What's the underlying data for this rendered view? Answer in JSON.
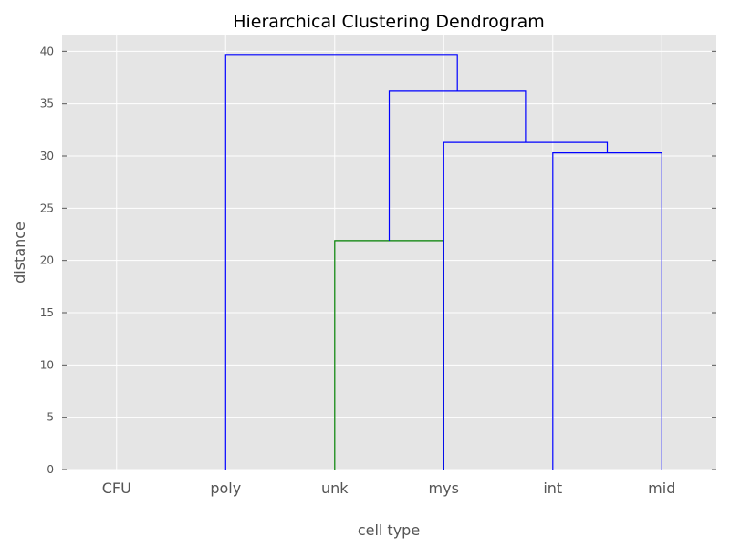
{
  "chart_data": {
    "type": "dendrogram",
    "title": "Hierarchical Clustering Dendrogram",
    "xlabel": "cell type",
    "ylabel": "distance",
    "ylim": [
      0,
      41.6
    ],
    "yticks": [
      0,
      5,
      10,
      15,
      20,
      25,
      30,
      35,
      40
    ],
    "leaves": [
      "CFU",
      "poly",
      "unk",
      "mys",
      "int",
      "mid"
    ],
    "grid": true,
    "colors": {
      "background": "#e5e5e5",
      "grid": "#ffffff",
      "above_threshold": "#0000ff",
      "cluster": "#008000"
    },
    "links": [
      {
        "icoord": [
          25,
          25,
          35,
          35
        ],
        "dcoord": [
          0,
          21.9,
          21.9,
          0
        ],
        "color": "#008000"
      },
      {
        "icoord": [
          45,
          45,
          55,
          55
        ],
        "dcoord": [
          0,
          30.3,
          30.3,
          0
        ],
        "color": "#0000ff"
      },
      {
        "icoord": [
          35,
          35,
          50,
          50
        ],
        "dcoord": [
          0,
          31.3,
          31.3,
          30.3
        ],
        "color": "#0000ff"
      },
      {
        "icoord": [
          30,
          30,
          42.5,
          42.5
        ],
        "dcoord": [
          21.9,
          36.2,
          36.2,
          31.3
        ],
        "color": "#0000ff"
      },
      {
        "icoord": [
          15,
          15,
          36.25,
          36.25
        ],
        "dcoord": [
          0,
          39.7,
          39.7,
          36.2
        ],
        "color": "#0000ff"
      }
    ]
  }
}
